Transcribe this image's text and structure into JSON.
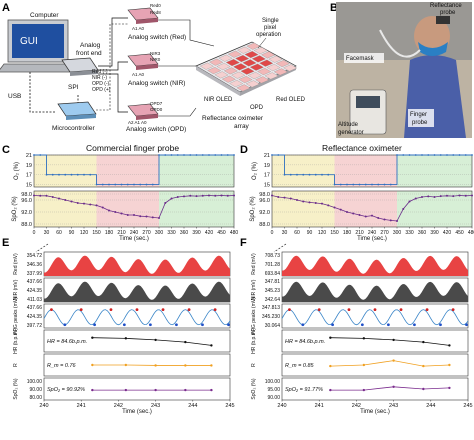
{
  "panels": {
    "A": "A",
    "B": "B",
    "C": "C",
    "D": "D",
    "E": "E",
    "F": "F"
  },
  "panel_a": {
    "computer": "Computer",
    "gui": "GUI",
    "usb": "USB",
    "spi": "SPI",
    "analog_front_end_line1": "Analog",
    "analog_front_end_line2": "front end",
    "microcontroller": "Microcontroller",
    "switch_red": "Analog switch (Red)",
    "switch_nir": "Analog switch (NIR)",
    "switch_opd": "Analog switch (OPD)",
    "chip_pins_red_top": [
      "Red0",
      "Red8"
    ],
    "chip_pins_red_bottom": "A1 A0",
    "chip_pins_nir_top": [
      "NIR3",
      "NIR0"
    ],
    "chip_pins_nir_bottom": "A1 A0",
    "chip_pins_opd_top": [
      "OPD7",
      "OPD0"
    ],
    "chip_pins_opd_bottom": "A2 A1 A0",
    "afe_signals": [
      "Red (-)",
      "NIR (-)",
      "OPD (-)",
      "OPD (+)"
    ],
    "single_pixel_line1": "Single",
    "single_pixel_line2": "pixel",
    "single_pixel_line3": "operation",
    "nir_oled": "NIR OLED",
    "red_oled": "Red OLED",
    "opd": "OPD",
    "array_line1": "Reflectance oximeter",
    "array_line2": "array"
  },
  "panel_b": {
    "probe_line1": "Reflectance",
    "probe_line2": "probe",
    "facemask": "Facemask",
    "finger_line1": "Finger",
    "finger_line2": "probe",
    "altitude_line1": "Altitude",
    "altitude_line2": "generator"
  },
  "panel_c": {
    "title": "Commercial finger probe",
    "o2_ylabel": "O₂ (%)",
    "spo2_ylabel": "SpO₂ (%)",
    "xlabel": "Time (sec.)",
    "o2_ticks": [
      "21",
      "19",
      "17",
      "15"
    ],
    "spo2_ticks": [
      "98.0",
      "96.0",
      "92.0",
      "88.0"
    ],
    "x_ticks": [
      "0",
      "30",
      "60",
      "90",
      "120",
      "150",
      "180",
      "210",
      "240",
      "270",
      "300",
      "330",
      "360",
      "390",
      "420",
      "450",
      "480"
    ]
  },
  "panel_d": {
    "title": "Reflectance oximeter",
    "o2_ylabel": "O₂ (%)",
    "spo2_ylabel": "SpO₂ (%)",
    "xlabel": "Time (sec.)",
    "o2_ticks": [
      "21",
      "19",
      "17",
      "15"
    ],
    "spo2_ticks": [
      "98.0",
      "96.0",
      "92.0",
      "88.0"
    ],
    "x_ticks": [
      "0",
      "30",
      "60",
      "90",
      "120",
      "150",
      "180",
      "210",
      "240",
      "270",
      "300",
      "330",
      "360",
      "390",
      "420",
      "450",
      "480"
    ]
  },
  "panel_e": {
    "rows": [
      {
        "ylabel": "Red (mV)",
        "ticks": [
          "354.72",
          "346.36",
          "337.99"
        ]
      },
      {
        "ylabel": "NIR (mV)",
        "ticks": [
          "437.66",
          "424.35",
          "411.03"
        ]
      },
      {
        "ylabel": "PPG peaks (mV)",
        "ticks": [
          "437.66",
          "424.35",
          "397.72"
        ]
      },
      {
        "ylabel": "HR (b.p.m.)",
        "ticks": [],
        "annotation": "HR = 84.6b.p.m."
      },
      {
        "ylabel": "R",
        "ticks": [],
        "annotation": "R_m = 0.76"
      },
      {
        "ylabel": "SpO₂ (%)",
        "ticks": [
          "100.00",
          "90.00",
          "80.00"
        ],
        "annotation": "SpO₂ = 90.92%"
      }
    ],
    "x_ticks": [
      "240",
      "241",
      "242",
      "243",
      "244",
      "245"
    ],
    "xlabel": "Time (sec.)"
  },
  "panel_f": {
    "rows": [
      {
        "ylabel": "Red (mV)",
        "ticks": [
          "708.73",
          "701.28",
          "693.84"
        ]
      },
      {
        "ylabel": "NIR (mV)",
        "ticks": [
          "347.81",
          "345.23",
          "342.64"
        ]
      },
      {
        "ylabel": "PPG peaks (mV)",
        "ticks": [
          "347.813",
          "345.230",
          "30.064"
        ]
      },
      {
        "ylabel": "HR (b.p.m.)",
        "ticks": [],
        "annotation": "HR = 84.6b.p.m."
      },
      {
        "ylabel": "R",
        "ticks": [],
        "annotation": "R_m = 0.85"
      },
      {
        "ylabel": "SpO₂ (%)",
        "ticks": [
          "100.00",
          "95.00",
          "90.00"
        ],
        "annotation": "SpO₂ = 91.77%"
      }
    ],
    "x_ticks": [
      "240",
      "241",
      "242",
      "243",
      "244",
      "245"
    ],
    "xlabel": "Time (sec.)"
  },
  "colors": {
    "phase_blue": "#d6e4f5",
    "phase_yellow": "#f7f0c8",
    "phase_red": "#f6d3d3",
    "phase_green": "#d7efd6",
    "o2_line": "#2f6fc0",
    "spo2_line": "#6a2b8a",
    "red_fill": "#e84343",
    "nir_fill": "#4a4a4a",
    "ppg_line": "#3b86c8",
    "hr_line": "#111111",
    "r_line": "#f0a020",
    "spo2_small": "#7b2d8e"
  }
}
